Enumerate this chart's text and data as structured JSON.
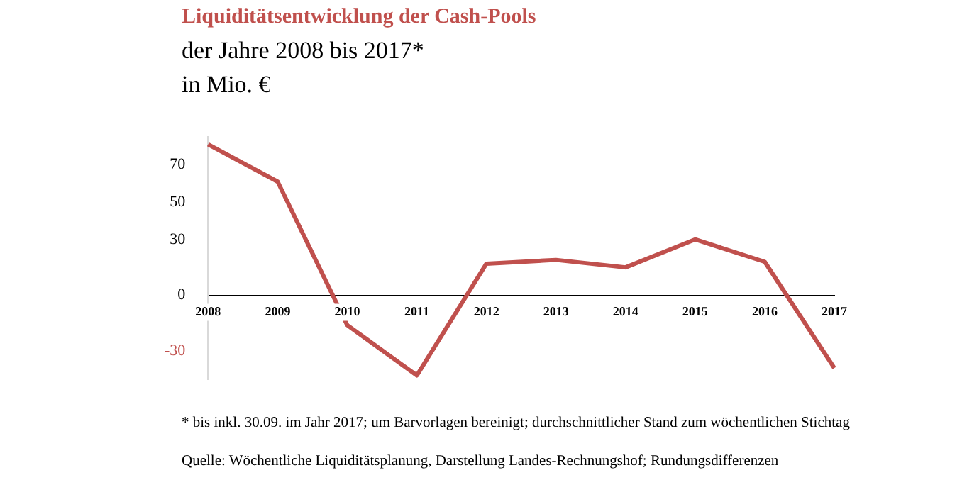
{
  "chart_data": {
    "type": "line",
    "title": "Liquiditätsentwicklung der Cash-Pools",
    "subtitle": "der Jahre 2008 bis 2017*",
    "ylabel": "in Mio. €",
    "categories": [
      "2008",
      "2009",
      "2010",
      "2011",
      "2012",
      "2013",
      "2014",
      "2015",
      "2016",
      "2017"
    ],
    "series": [
      {
        "color": "#c0504d",
        "values": [
          81,
          61,
          -16,
          -43,
          17,
          19,
          15,
          30,
          18,
          -39
        ]
      }
    ],
    "ylim": [
      -45,
      85
    ],
    "yticks": [
      -30,
      0,
      30,
      50,
      70
    ],
    "grid": false,
    "legend": false,
    "marker": "none",
    "line_style": "solid",
    "annotations": [
      "* bis inkl. 30.09. im Jahr 2017; um Barvorlagen bereinigt; durchschnittlicher Stand zum wöchentlichen Stichtag",
      "Quelle: Wöchentliche Liquiditätsplanung, Darstellung Landes-Rechnungshof; Rundungsdifferenzen"
    ]
  }
}
